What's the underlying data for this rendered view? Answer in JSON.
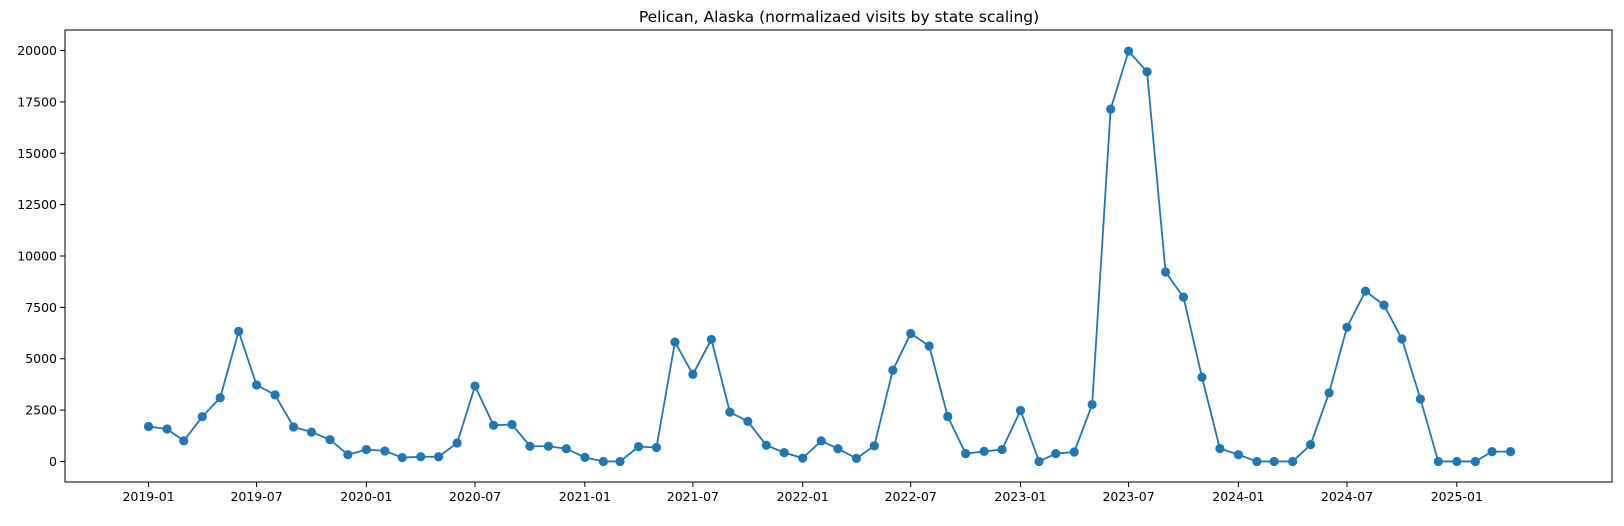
{
  "chart_data": {
    "type": "line",
    "title": "Pelican, Alaska (normalizaed visits by state scaling)",
    "xlabel": "",
    "ylabel": "",
    "color": "#1f77b4",
    "marker": "circle",
    "grid": false,
    "legend": "none",
    "xlim": [
      "2018-08-14",
      "2025-09-18"
    ],
    "ylim": [
      -1000,
      21000
    ],
    "x_ticks": [
      "2019-01-01",
      "2019-07-01",
      "2020-01-01",
      "2020-07-01",
      "2021-01-01",
      "2021-07-01",
      "2022-01-01",
      "2022-07-01",
      "2023-01-01",
      "2023-07-01",
      "2024-01-01",
      "2024-07-01",
      "2025-01-01"
    ],
    "x_tick_labels": [
      "2019-01",
      "2019-07",
      "2020-01",
      "2020-07",
      "2021-01",
      "2021-07",
      "2022-01",
      "2022-07",
      "2023-01",
      "2023-07",
      "2024-01",
      "2024-07",
      "2025-01"
    ],
    "y_ticks": [
      0,
      2500,
      5000,
      7500,
      10000,
      12500,
      15000,
      17500,
      20000
    ],
    "y_tick_labels": [
      "0",
      "2500",
      "5000",
      "7500",
      "10000",
      "12500",
      "15000",
      "17500",
      "20000"
    ],
    "x": [
      "2019-01-01",
      "2019-02-01",
      "2019-03-01",
      "2019-04-01",
      "2019-05-01",
      "2019-06-01",
      "2019-07-01",
      "2019-08-01",
      "2019-09-01",
      "2019-10-01",
      "2019-11-01",
      "2019-12-01",
      "2020-01-01",
      "2020-02-01",
      "2020-03-01",
      "2020-04-01",
      "2020-05-01",
      "2020-06-01",
      "2020-07-01",
      "2020-08-01",
      "2020-09-01",
      "2020-10-01",
      "2020-11-01",
      "2020-12-01",
      "2021-01-01",
      "2021-02-01",
      "2021-03-01",
      "2021-04-01",
      "2021-05-01",
      "2021-06-01",
      "2021-07-01",
      "2021-08-01",
      "2021-09-01",
      "2021-10-01",
      "2021-11-01",
      "2021-12-01",
      "2022-01-01",
      "2022-02-01",
      "2022-03-01",
      "2022-04-01",
      "2022-05-01",
      "2022-06-01",
      "2022-07-01",
      "2022-08-01",
      "2022-09-01",
      "2022-10-01",
      "2022-11-01",
      "2022-12-01",
      "2023-01-01",
      "2023-02-01",
      "2023-03-01",
      "2023-04-01",
      "2023-05-01",
      "2023-06-01",
      "2023-07-01",
      "2023-08-01",
      "2023-09-01",
      "2023-10-01",
      "2023-11-01",
      "2023-12-01",
      "2024-01-01",
      "2024-02-01",
      "2024-03-01",
      "2024-04-01",
      "2024-05-01",
      "2024-06-01",
      "2024-07-01",
      "2024-08-01",
      "2024-09-01",
      "2024-10-01",
      "2024-11-01",
      "2024-12-01",
      "2025-01-01",
      "2025-02-01",
      "2025-03-01",
      "2025-04-01"
    ],
    "y": [
      1700,
      1580,
      1000,
      2180,
      3100,
      6330,
      3720,
      3240,
      1680,
      1430,
      1060,
      330,
      580,
      510,
      190,
      230,
      230,
      900,
      3670,
      1760,
      1800,
      740,
      740,
      620,
      200,
      0,
      0,
      720,
      680,
      5810,
      4240,
      5940,
      2400,
      1950,
      790,
      430,
      160,
      1000,
      620,
      150,
      760,
      4440,
      6230,
      5620,
      2190,
      380,
      490,
      580,
      2480,
      0,
      380,
      460,
      2770,
      17150,
      19970,
      18970,
      9220,
      8000,
      4100,
      630,
      330,
      0,
      0,
      0,
      820,
      3340,
      6530,
      8290,
      7610,
      5960,
      3040,
      0,
      0,
      0,
      480,
      480
    ]
  }
}
